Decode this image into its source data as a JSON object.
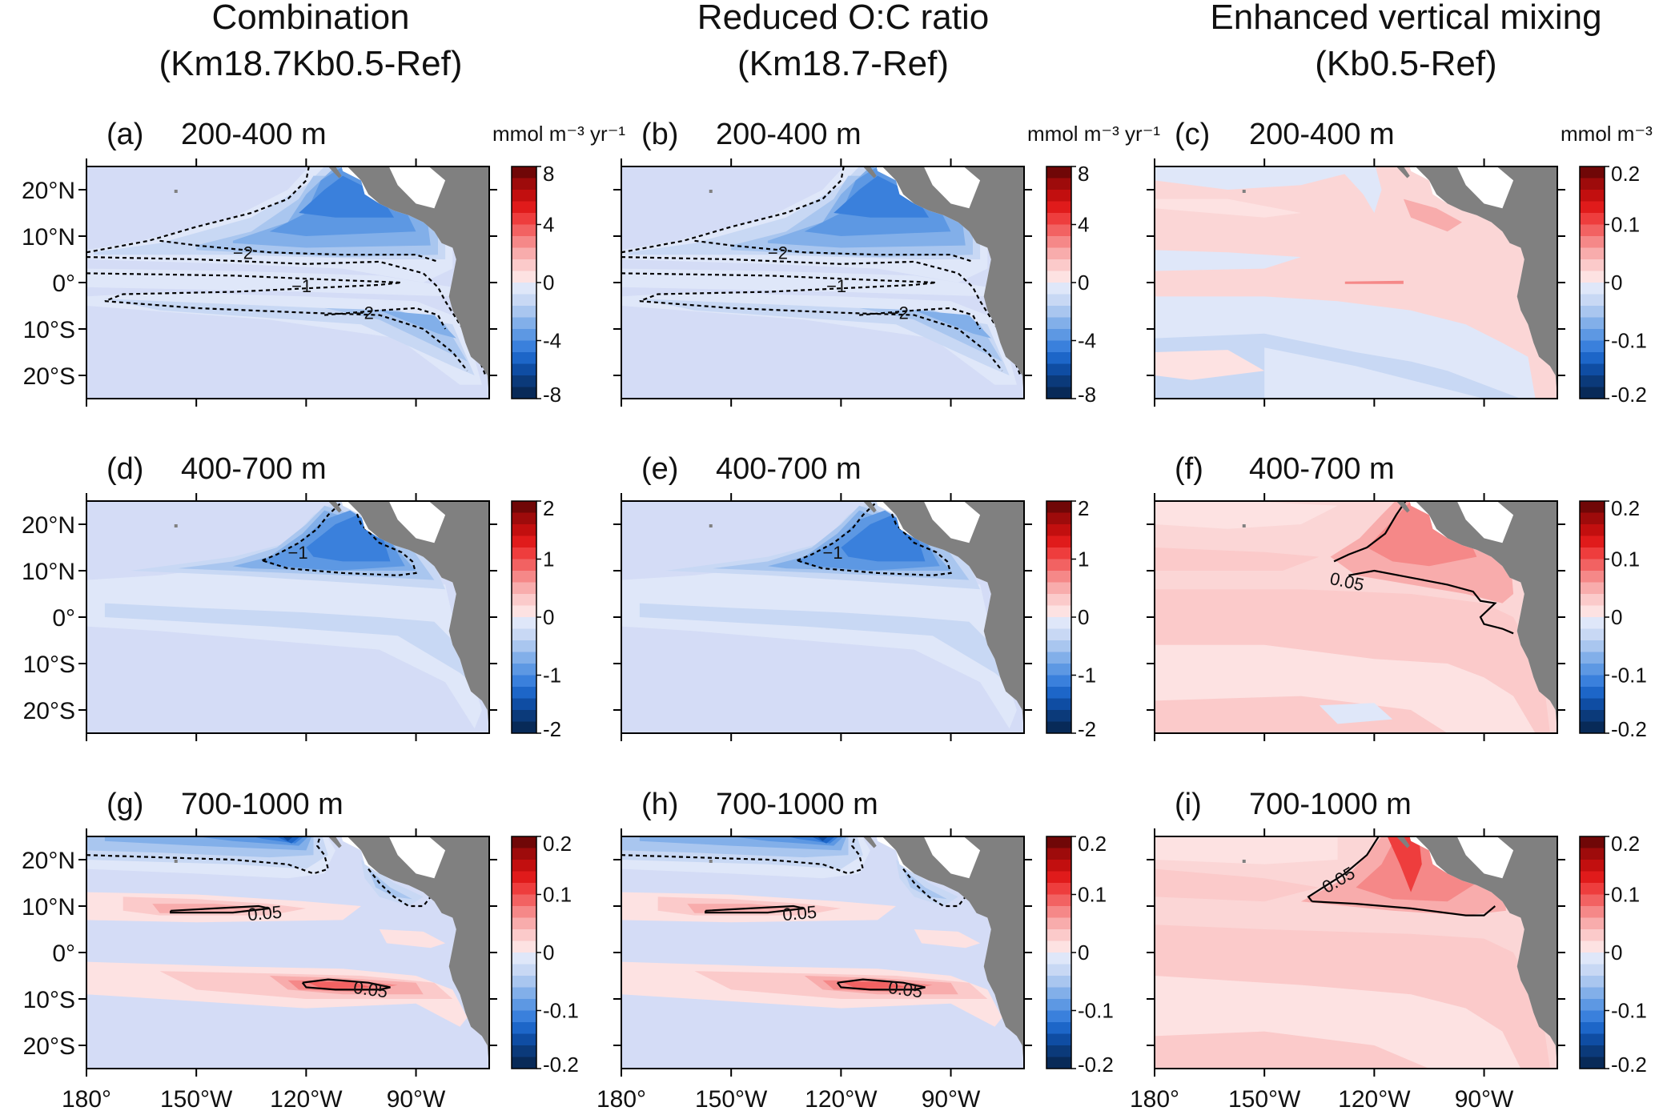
{
  "columns": [
    {
      "title1": "Combination",
      "title2": "(Km18.7Kb0.5-Ref)"
    },
    {
      "title1": "Reduced O:C ratio",
      "title2": "(Km18.7-Ref)"
    },
    {
      "title1": "Enhanced vertical mixing",
      "title2": "(Kb0.5-Ref)"
    }
  ],
  "units": "mmol m⁻³ yr⁻¹",
  "colors": {
    "land": "#808080",
    "positive": "#d7191c",
    "negative": "#2166ac",
    "neutral": "#f7f7f7",
    "contour": "#000000"
  },
  "chart_data": {
    "type": "heatmap",
    "description_axes": {
      "x_ticks": [
        "180°",
        "150°W",
        "120°W",
        "90°W"
      ],
      "y_ticks": [
        "20°N",
        "10°N",
        "0°",
        "10°S",
        "20°S"
      ],
      "xlim": [
        -180,
        -70
      ],
      "ylim": [
        -25,
        25
      ]
    },
    "panels": [
      {
        "id": "a",
        "label": "(a)",
        "depth": "200-400 m",
        "cbar_ticks": [
          "8",
          "4",
          "0",
          "-4",
          "-8"
        ],
        "range": [
          -8,
          8
        ],
        "show_units": true,
        "contours": [
          {
            "value": -2,
            "label": "-2",
            "style": "dashed"
          },
          {
            "value": -1,
            "label": "-1",
            "style": "dashed"
          }
        ]
      },
      {
        "id": "b",
        "label": "(b)",
        "depth": "200-400 m",
        "cbar_ticks": [
          "8",
          "4",
          "0",
          "-4",
          "-8"
        ],
        "range": [
          -8,
          8
        ],
        "show_units": true,
        "contours": [
          {
            "value": -2,
            "label": "-2",
            "style": "dashed"
          },
          {
            "value": -1,
            "label": "-1",
            "style": "dashed"
          }
        ]
      },
      {
        "id": "c",
        "label": "(c)",
        "depth": "200-400 m",
        "cbar_ticks": [
          "0.2",
          "0.1",
          "0",
          "-0.1",
          "-0.2"
        ],
        "range": [
          -0.2,
          0.2
        ],
        "show_units": true,
        "contours": []
      },
      {
        "id": "d",
        "label": "(d)",
        "depth": "400-700 m",
        "cbar_ticks": [
          "2",
          "1",
          "0",
          "-1",
          "-2"
        ],
        "range": [
          -2,
          2
        ],
        "show_units": false,
        "contours": [
          {
            "value": -1,
            "label": "-1",
            "style": "dashed"
          }
        ]
      },
      {
        "id": "e",
        "label": "(e)",
        "depth": "400-700 m",
        "cbar_ticks": [
          "2",
          "1",
          "0",
          "-1",
          "-2"
        ],
        "range": [
          -2,
          2
        ],
        "show_units": false,
        "contours": [
          {
            "value": -1,
            "label": "-1",
            "style": "dashed"
          }
        ]
      },
      {
        "id": "f",
        "label": "(f)",
        "depth": "400-700 m",
        "cbar_ticks": [
          "0.2",
          "0.1",
          "0",
          "-0.1",
          "-0.2"
        ],
        "range": [
          -0.2,
          0.2
        ],
        "show_units": false,
        "contours": [
          {
            "value": 0.05,
            "label": "0.05",
            "style": "solid"
          }
        ]
      },
      {
        "id": "g",
        "label": "(g)",
        "depth": "700-1000 m",
        "cbar_ticks": [
          "0.2",
          "0.1",
          "0",
          "-0.1",
          "-0.2"
        ],
        "range": [
          -0.2,
          0.2
        ],
        "show_units": false,
        "contours": [
          {
            "value": 0.05,
            "label": "0.05",
            "style": "solid"
          },
          {
            "value": -0.05,
            "label": "",
            "style": "dashed"
          }
        ]
      },
      {
        "id": "h",
        "label": "(h)",
        "depth": "700-1000 m",
        "cbar_ticks": [
          "0.2",
          "0.1",
          "0",
          "-0.1",
          "-0.2"
        ],
        "range": [
          -0.2,
          0.2
        ],
        "show_units": false,
        "contours": [
          {
            "value": 0.05,
            "label": "0.05",
            "style": "solid"
          },
          {
            "value": -0.05,
            "label": "",
            "style": "dashed"
          }
        ]
      },
      {
        "id": "i",
        "label": "(i)",
        "depth": "700-1000 m",
        "cbar_ticks": [
          "0.2",
          "0.1",
          "0",
          "-0.1",
          "-0.2"
        ],
        "range": [
          -0.2,
          0.2
        ],
        "show_units": false,
        "contours": [
          {
            "value": 0.05,
            "label": "0.05",
            "style": "solid"
          }
        ]
      }
    ]
  }
}
